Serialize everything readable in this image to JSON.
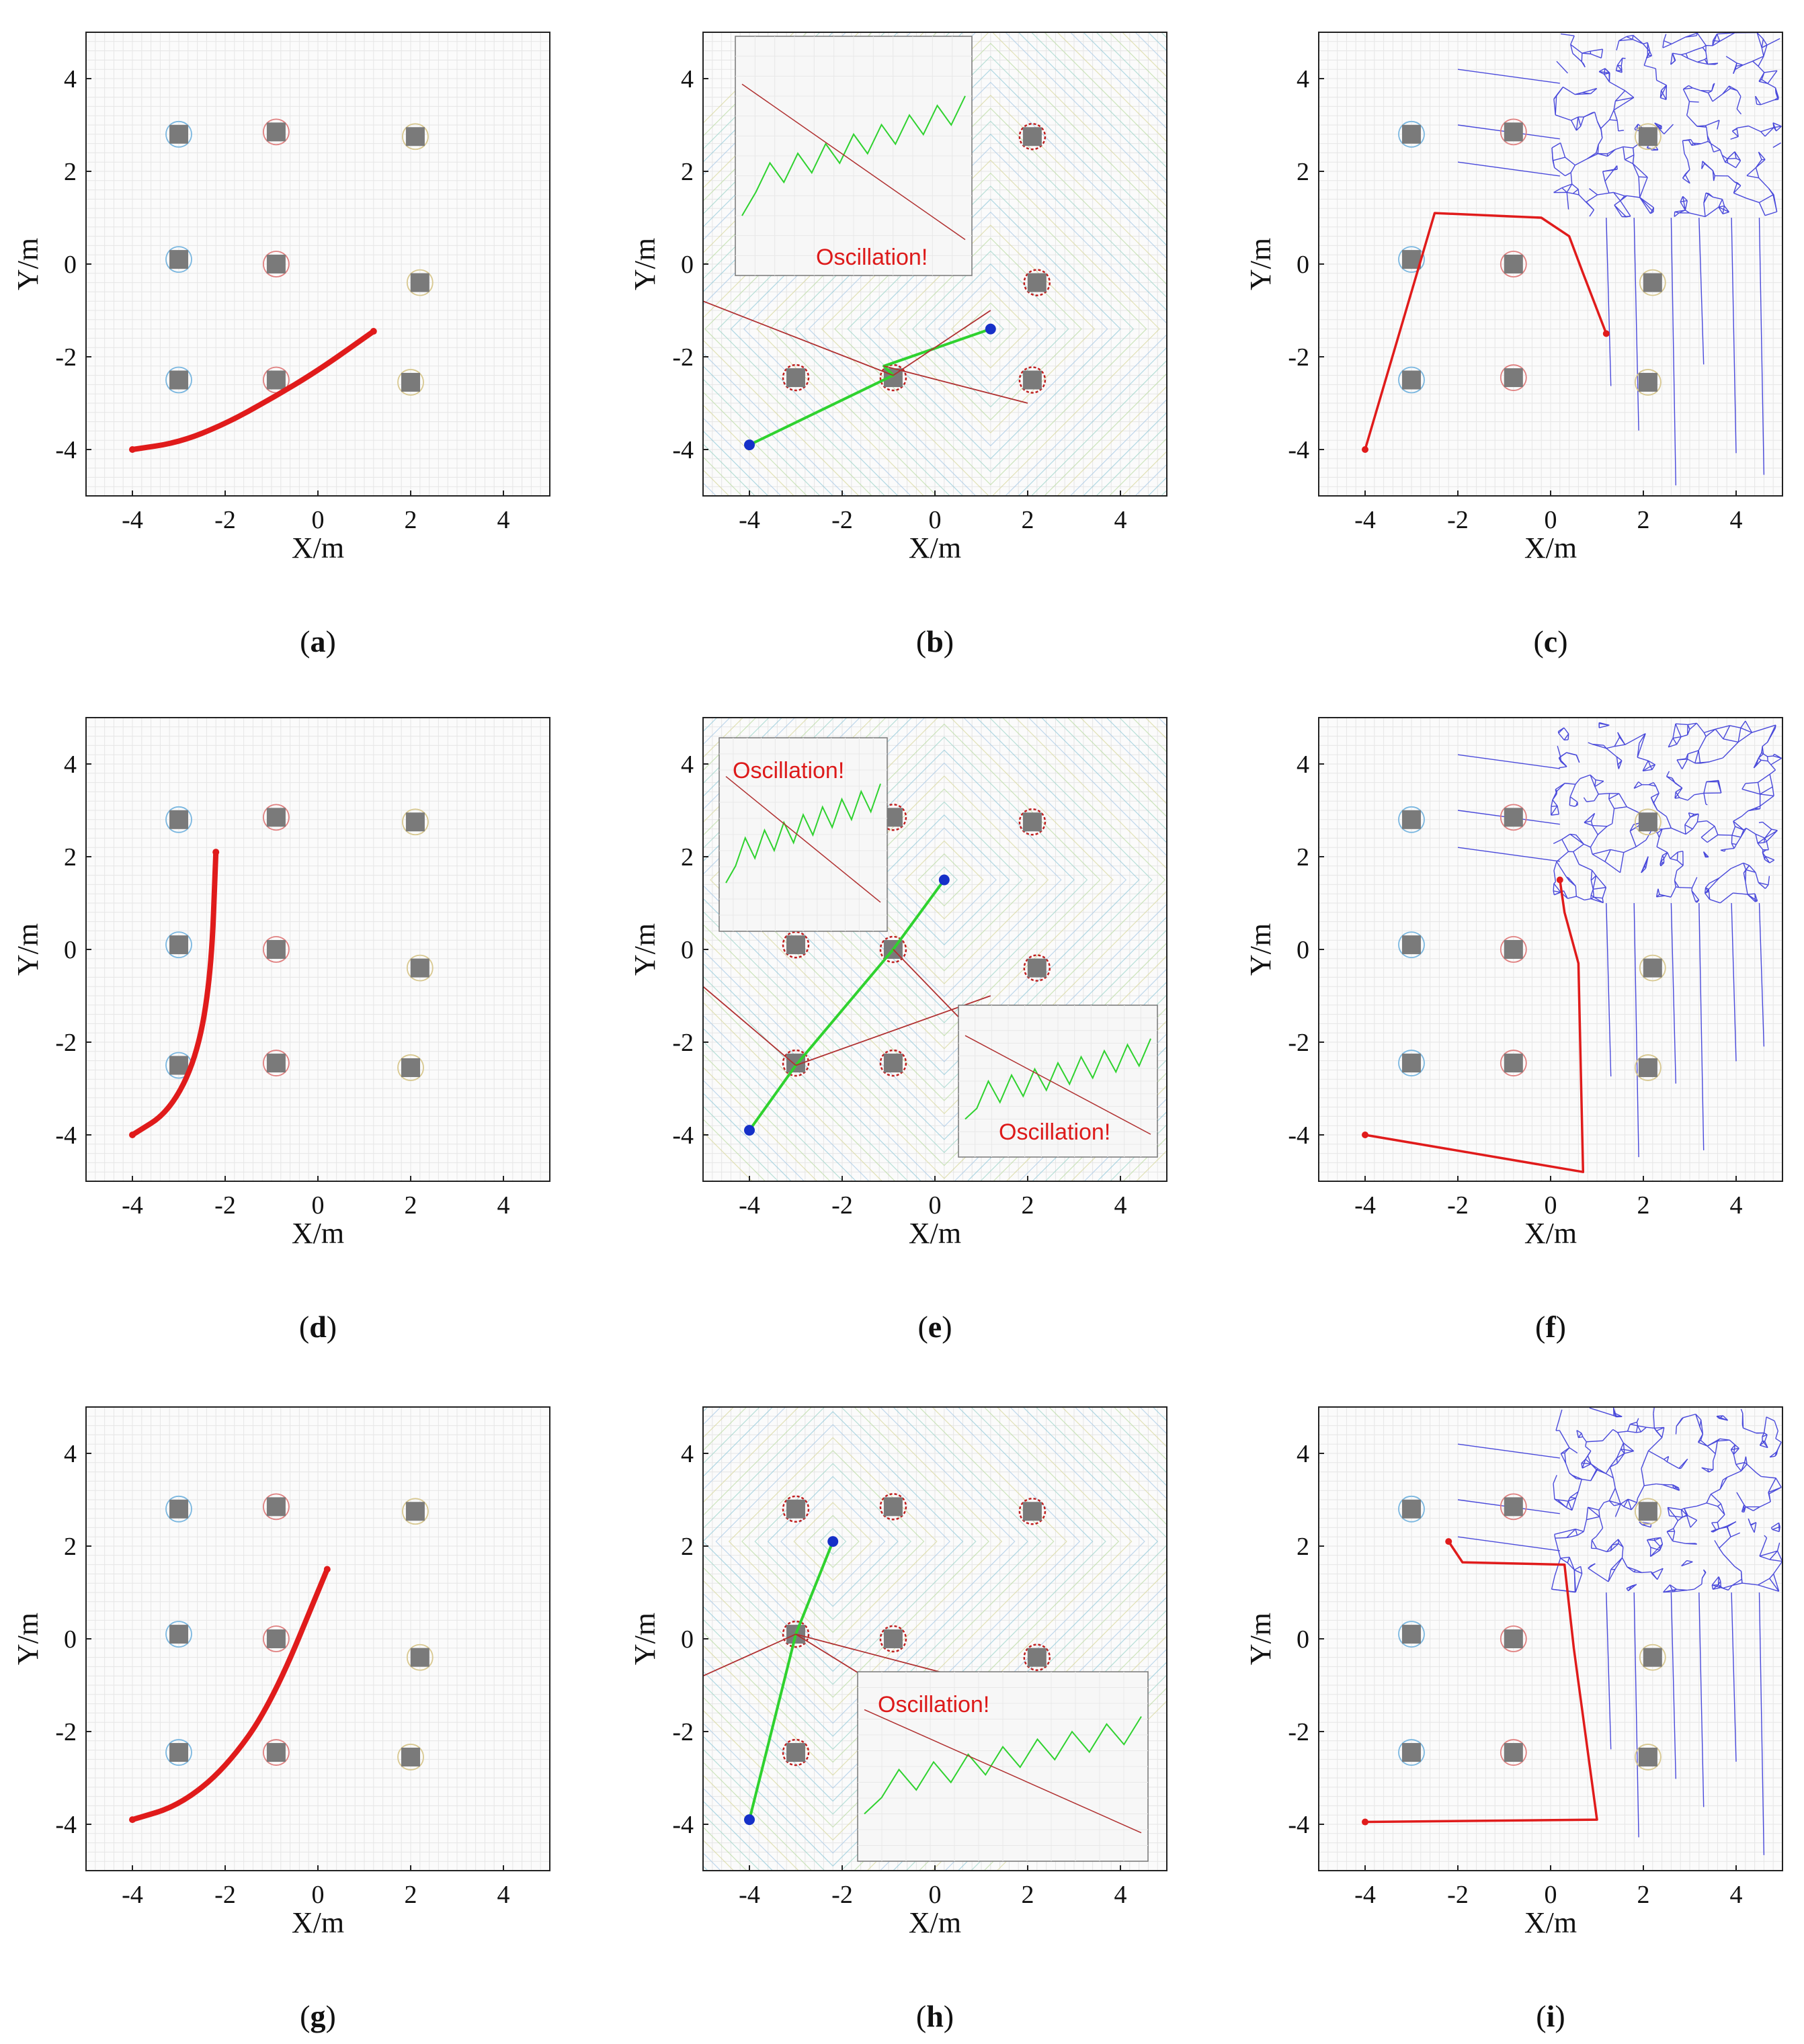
{
  "colors": {
    "path": "#e01b1b",
    "fieldPath": "#2fd22f",
    "marker": "#1530c8",
    "force": "#b03030",
    "voronoi": "#2b2bd6",
    "obstacle": "#7a7a7a",
    "oscText": "#dd1a1a"
  },
  "chart_data": [
    {
      "id": "a",
      "caption_letter": "a",
      "type": "line",
      "method": "curve",
      "xlabel": "X/m",
      "ylabel": "Y/m",
      "xlim": [
        -5,
        5
      ],
      "ylim": [
        -5,
        5
      ],
      "xticks": [
        "-4",
        "-2",
        "0",
        "2",
        "4"
      ],
      "yticks": [
        "4",
        "2",
        "0",
        "-2",
        "-4"
      ],
      "obstacles": [
        [
          -3,
          2.8
        ],
        [
          -0.9,
          2.85
        ],
        [
          2.1,
          2.75
        ],
        [
          -3,
          0.1
        ],
        [
          -0.9,
          0
        ],
        [
          2.2,
          -0.4
        ],
        [
          -3,
          -2.5
        ],
        [
          -0.9,
          -2.5
        ],
        [
          2.0,
          -2.55
        ]
      ],
      "path": [
        [
          -4,
          -4
        ],
        [
          -3,
          -3.85
        ],
        [
          -2,
          -3.45
        ],
        [
          -1,
          -2.9
        ],
        [
          0,
          -2.3
        ],
        [
          1.2,
          -1.45
        ]
      ],
      "start": [
        -4,
        -4
      ],
      "goal": [
        1.2,
        -1.45
      ]
    },
    {
      "id": "b",
      "caption_letter": "b",
      "type": "line",
      "method": "potential-field",
      "xlabel": "X/m",
      "ylabel": "Y/m",
      "xlim": [
        -5,
        5
      ],
      "ylim": [
        -5,
        5
      ],
      "xticks": [
        "-4",
        "-2",
        "0",
        "2",
        "4"
      ],
      "yticks": [
        "4",
        "2",
        "0",
        "-2",
        "-4"
      ],
      "obstacles": [
        [
          2.1,
          2.75
        ],
        [
          2.2,
          -0.4
        ],
        [
          -3,
          -2.45
        ],
        [
          -0.9,
          -2.45
        ],
        [
          2.1,
          -2.5
        ]
      ],
      "path": [
        [
          -4,
          -3.9
        ],
        [
          -0.9,
          -2.4
        ],
        [
          -1.1,
          -2.2
        ],
        [
          1.2,
          -1.4
        ]
      ],
      "start": [
        -4,
        -3.9
      ],
      "goal": [
        1.2,
        -1.4
      ],
      "inset": {
        "label": "Oscillation!"
      }
    },
    {
      "id": "c",
      "caption_letter": "c",
      "type": "line",
      "method": "voronoi",
      "xlabel": "X/m",
      "ylabel": "Y/m",
      "xlim": [
        -5,
        5
      ],
      "ylim": [
        -5,
        5
      ],
      "xticks": [
        "-4",
        "-2",
        "0",
        "2",
        "4"
      ],
      "yticks": [
        "4",
        "2",
        "0",
        "-2",
        "-4"
      ],
      "obstacles": [
        [
          -3,
          2.8
        ],
        [
          -0.8,
          2.85
        ],
        [
          2.1,
          2.75
        ],
        [
          -3,
          0.1
        ],
        [
          -0.8,
          0
        ],
        [
          2.2,
          -0.4
        ],
        [
          -3,
          -2.5
        ],
        [
          -0.8,
          -2.45
        ],
        [
          2.1,
          -2.55
        ]
      ],
      "path": [
        [
          -4,
          -4
        ],
        [
          -2.5,
          1.1
        ],
        [
          -0.2,
          1.0
        ],
        [
          0.4,
          0.6
        ],
        [
          0.7,
          -0.2
        ],
        [
          1.2,
          -1.5
        ]
      ],
      "start": [
        -4,
        -4
      ],
      "goal": [
        1.2,
        -1.5
      ]
    },
    {
      "id": "d",
      "caption_letter": "d",
      "type": "line",
      "method": "curve",
      "xlabel": "X/m",
      "ylabel": "Y/m",
      "xlim": [
        -5,
        5
      ],
      "ylim": [
        -5,
        5
      ],
      "xticks": [
        "-4",
        "-2",
        "0",
        "2",
        "4"
      ],
      "yticks": [
        "4",
        "2",
        "0",
        "-2",
        "-4"
      ],
      "obstacles": [
        [
          -3,
          2.8
        ],
        [
          -0.9,
          2.85
        ],
        [
          2.1,
          2.75
        ],
        [
          -3,
          0.1
        ],
        [
          -0.9,
          0
        ],
        [
          2.2,
          -0.4
        ],
        [
          -3,
          -2.5
        ],
        [
          -0.9,
          -2.45
        ],
        [
          2.0,
          -2.55
        ]
      ],
      "path": [
        [
          -4,
          -4
        ],
        [
          -3.2,
          -3.5
        ],
        [
          -2.6,
          -2.3
        ],
        [
          -2.3,
          -0.5
        ],
        [
          -2.2,
          2.1
        ]
      ],
      "start": [
        -4,
        -4
      ],
      "goal": [
        -2.2,
        2.1
      ]
    },
    {
      "id": "e",
      "caption_letter": "e",
      "type": "line",
      "method": "potential-field",
      "xlabel": "X/m",
      "ylabel": "Y/m",
      "xlim": [
        -5,
        5
      ],
      "ylim": [
        -5,
        5
      ],
      "xticks": [
        "-4",
        "-2",
        "0",
        "2",
        "4"
      ],
      "yticks": [
        "4",
        "2",
        "0",
        "-2",
        "-4"
      ],
      "obstacles": [
        [
          -0.9,
          2.85
        ],
        [
          2.1,
          2.75
        ],
        [
          -3,
          0.1
        ],
        [
          -0.9,
          0
        ],
        [
          2.2,
          -0.4
        ],
        [
          -3,
          -2.45
        ],
        [
          -0.9,
          -2.45
        ]
      ],
      "path": [
        [
          -4,
          -3.9
        ],
        [
          -3,
          -2.5
        ],
        [
          -0.9,
          0
        ],
        [
          0.2,
          1.5
        ]
      ],
      "start": [
        -4,
        -3.9
      ],
      "goal": [
        0.2,
        1.5
      ],
      "inset": {
        "label": "Oscillation!"
      },
      "inset2": {
        "label": "Oscillation!"
      }
    },
    {
      "id": "f",
      "caption_letter": "f",
      "type": "line",
      "method": "voronoi",
      "xlabel": "X/m",
      "ylabel": "Y/m",
      "xlim": [
        -5,
        5
      ],
      "ylim": [
        -5,
        5
      ],
      "xticks": [
        "-4",
        "-2",
        "0",
        "2",
        "4"
      ],
      "yticks": [
        "4",
        "2",
        "0",
        "-2",
        "-4"
      ],
      "obstacles": [
        [
          -3,
          2.8
        ],
        [
          -0.8,
          2.85
        ],
        [
          2.1,
          2.75
        ],
        [
          -3,
          0.1
        ],
        [
          -0.8,
          0
        ],
        [
          2.2,
          -0.4
        ],
        [
          -3,
          -2.45
        ],
        [
          -0.8,
          -2.45
        ],
        [
          2.1,
          -2.55
        ]
      ],
      "path": [
        [
          -4,
          -4
        ],
        [
          0.7,
          -4.8
        ],
        [
          0.6,
          -0.3
        ],
        [
          0.3,
          0.8
        ],
        [
          0.2,
          1.5
        ]
      ],
      "start": [
        -4,
        -4
      ],
      "goal": [
        0.2,
        1.5
      ]
    },
    {
      "id": "g",
      "caption_letter": "g",
      "type": "line",
      "method": "curve",
      "xlabel": "X/m",
      "ylabel": "Y/m",
      "xlim": [
        -5,
        5
      ],
      "ylim": [
        -5,
        5
      ],
      "xticks": [
        "-4",
        "-2",
        "0",
        "2",
        "4"
      ],
      "yticks": [
        "4",
        "2",
        "0",
        "-2",
        "-4"
      ],
      "obstacles": [
        [
          -3,
          2.8
        ],
        [
          -0.9,
          2.85
        ],
        [
          2.1,
          2.75
        ],
        [
          -3,
          0.1
        ],
        [
          -0.9,
          0
        ],
        [
          2.2,
          -0.4
        ],
        [
          -3,
          -2.45
        ],
        [
          -0.9,
          -2.45
        ],
        [
          2.0,
          -2.55
        ]
      ],
      "path": [
        [
          -4,
          -3.9
        ],
        [
          -3,
          -3.6
        ],
        [
          -2,
          -2.8
        ],
        [
          -1,
          -1.4
        ],
        [
          0.2,
          1.5
        ]
      ],
      "start": [
        -4,
        -3.9
      ],
      "goal": [
        0.2,
        1.5
      ]
    },
    {
      "id": "h",
      "caption_letter": "h",
      "type": "line",
      "method": "potential-field",
      "xlabel": "X/m",
      "ylabel": "Y/m",
      "xlim": [
        -5,
        5
      ],
      "ylim": [
        -5,
        5
      ],
      "xticks": [
        "-4",
        "-2",
        "0",
        "2",
        "4"
      ],
      "yticks": [
        "4",
        "2",
        "0",
        "-2",
        "-4"
      ],
      "obstacles": [
        [
          -3,
          2.8
        ],
        [
          -0.9,
          2.85
        ],
        [
          2.1,
          2.75
        ],
        [
          -3,
          0.1
        ],
        [
          -0.9,
          0
        ],
        [
          2.2,
          -0.4
        ],
        [
          -3,
          -2.45
        ]
      ],
      "path": [
        [
          -4,
          -3.9
        ],
        [
          -3,
          0.1
        ],
        [
          -2.2,
          2.1
        ]
      ],
      "start": [
        -4,
        -3.9
      ],
      "goal": [
        -2.2,
        2.1
      ],
      "inset": {
        "label": "Oscillation!"
      }
    },
    {
      "id": "i",
      "caption_letter": "i",
      "type": "line",
      "method": "voronoi",
      "xlabel": "X/m",
      "ylabel": "Y/m",
      "xlim": [
        -5,
        5
      ],
      "ylim": [
        -5,
        5
      ],
      "xticks": [
        "-4",
        "-2",
        "0",
        "2",
        "4"
      ],
      "yticks": [
        "4",
        "2",
        "0",
        "-2",
        "-4"
      ],
      "obstacles": [
        [
          -3,
          2.8
        ],
        [
          -0.8,
          2.85
        ],
        [
          2.1,
          2.75
        ],
        [
          -3,
          0.1
        ],
        [
          -0.8,
          0
        ],
        [
          2.2,
          -0.4
        ],
        [
          -3,
          -2.45
        ],
        [
          -0.8,
          -2.45
        ],
        [
          2.1,
          -2.55
        ]
      ],
      "path": [
        [
          -4,
          -3.95
        ],
        [
          1.0,
          -3.9
        ],
        [
          0.5,
          -0.2
        ],
        [
          0.3,
          1.6
        ],
        [
          -1.9,
          1.65
        ],
        [
          -2.2,
          2.1
        ]
      ],
      "start": [
        -4,
        -3.95
      ],
      "goal": [
        -2.2,
        2.1
      ]
    }
  ]
}
